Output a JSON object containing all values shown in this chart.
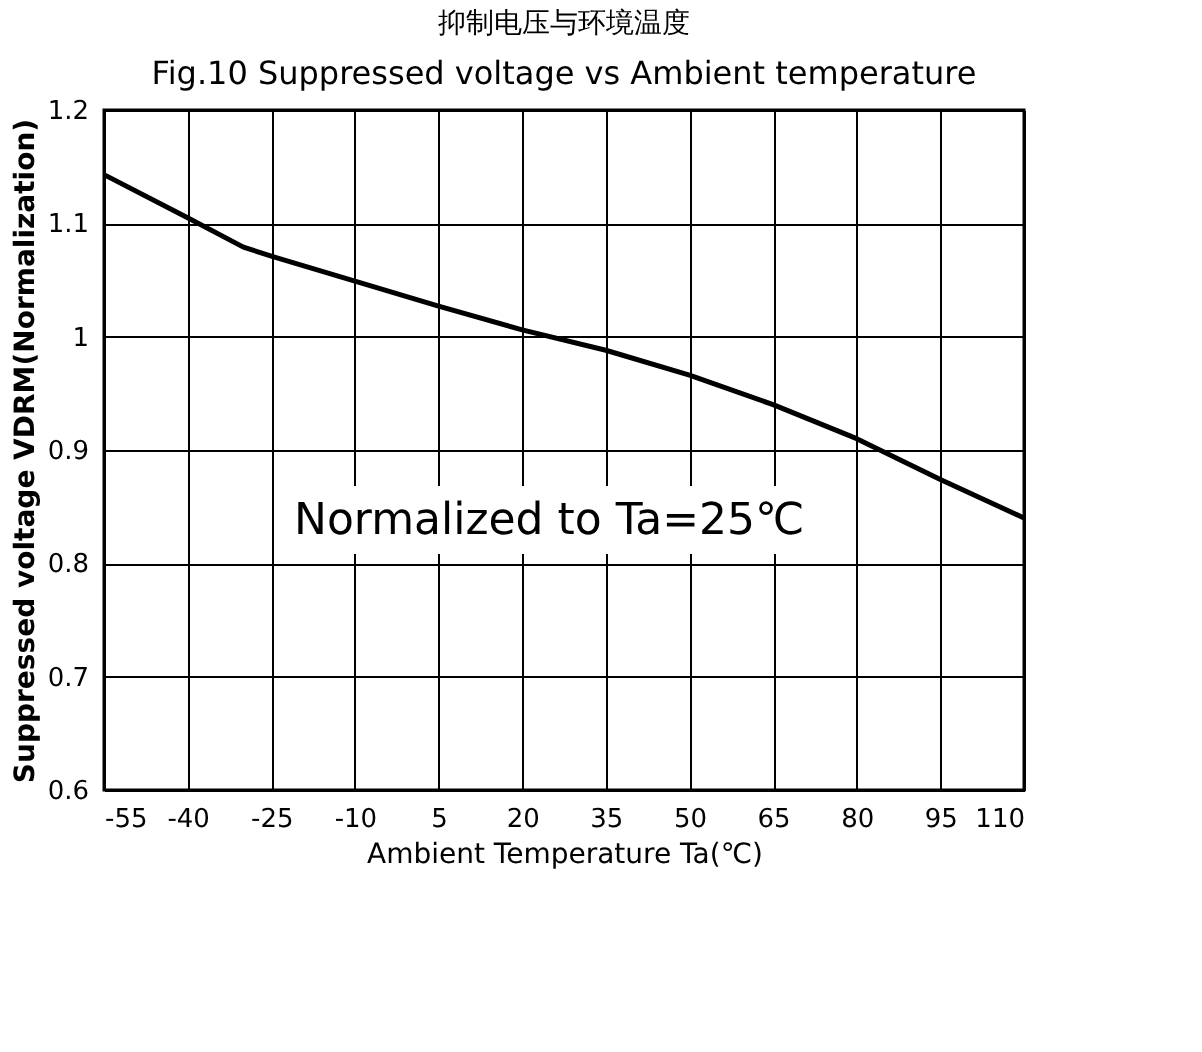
{
  "chart_data": {
    "type": "line",
    "title": "抑制电压与环境温度",
    "subtitle": "Fig.10 Suppressed voltage vs Ambient temperature",
    "xlabel": "Ambient Temperature Ta(℃)",
    "ylabel": "Suppressed voltage VDRM(Normalization)",
    "annotations": [
      "Normalized to Ta=25℃"
    ],
    "x": [
      -55,
      -40,
      -30,
      -25,
      -10,
      5,
      20,
      35,
      50,
      65,
      80,
      95,
      110
    ],
    "series": [
      {
        "color": "#000000",
        "values": [
          1.143,
          1.105,
          1.079,
          1.071,
          1.049,
          1.027,
          1.006,
          0.988,
          0.966,
          0.94,
          0.91,
          0.874,
          0.84
        ]
      }
    ],
    "xlim": [
      -55,
      110
    ],
    "xticks": [
      -55,
      -40,
      -25,
      -10,
      5,
      20,
      35,
      50,
      65,
      80,
      95,
      110
    ],
    "ylim": [
      0.6,
      1.2
    ],
    "yticks": [
      0.6,
      0.7,
      0.8,
      0.9,
      1,
      1.1,
      1.2
    ],
    "grid": true,
    "marker": "none",
    "line_style": "solid"
  }
}
